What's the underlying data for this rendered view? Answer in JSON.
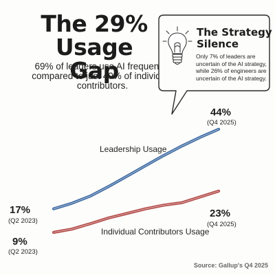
{
  "headline": {
    "title_line1": "The 29%",
    "title_line2": "Usage Gap",
    "subtitle": "69% of leaders use AI frequently, compared to just 40% of individual contributors."
  },
  "callout": {
    "icon": "lightbulb-icon",
    "title_line1": "The Strategy",
    "title_line2": "Silence",
    "body": "Only 7% of leaders are uncertain of the AI strategy, while 26% of engineers are uncertain of the AI strategy."
  },
  "chart_data": {
    "type": "line",
    "x": [
      "Q2 2023",
      "Q4 2025"
    ],
    "series": [
      {
        "name": "Leadership Usage",
        "values": [
          17,
          44
        ],
        "color": "#3d6aa3",
        "start_label": "17%",
        "start_sub": "(Q2 2023)",
        "end_label": "44%",
        "end_sub": "(Q4 2025)"
      },
      {
        "name": "Individual Contributors Usage",
        "values": [
          9,
          23
        ],
        "color": "#b24a47",
        "start_label": "9%",
        "start_sub": "(Q2 2023)",
        "end_label": "23%",
        "end_sub": "(Q4 2025)"
      }
    ],
    "shape": [
      [
        0,
        0.07,
        0.16,
        0.28,
        0.41,
        0.54,
        0.67,
        0.79,
        0.9,
        1
      ],
      [
        0,
        0.08,
        0.21,
        0.35,
        0.46,
        0.57,
        0.66,
        0.72,
        0.86,
        1
      ]
    ],
    "grid": false,
    "legend": "none"
  },
  "source": "Source: Gallup's Q4 2025"
}
